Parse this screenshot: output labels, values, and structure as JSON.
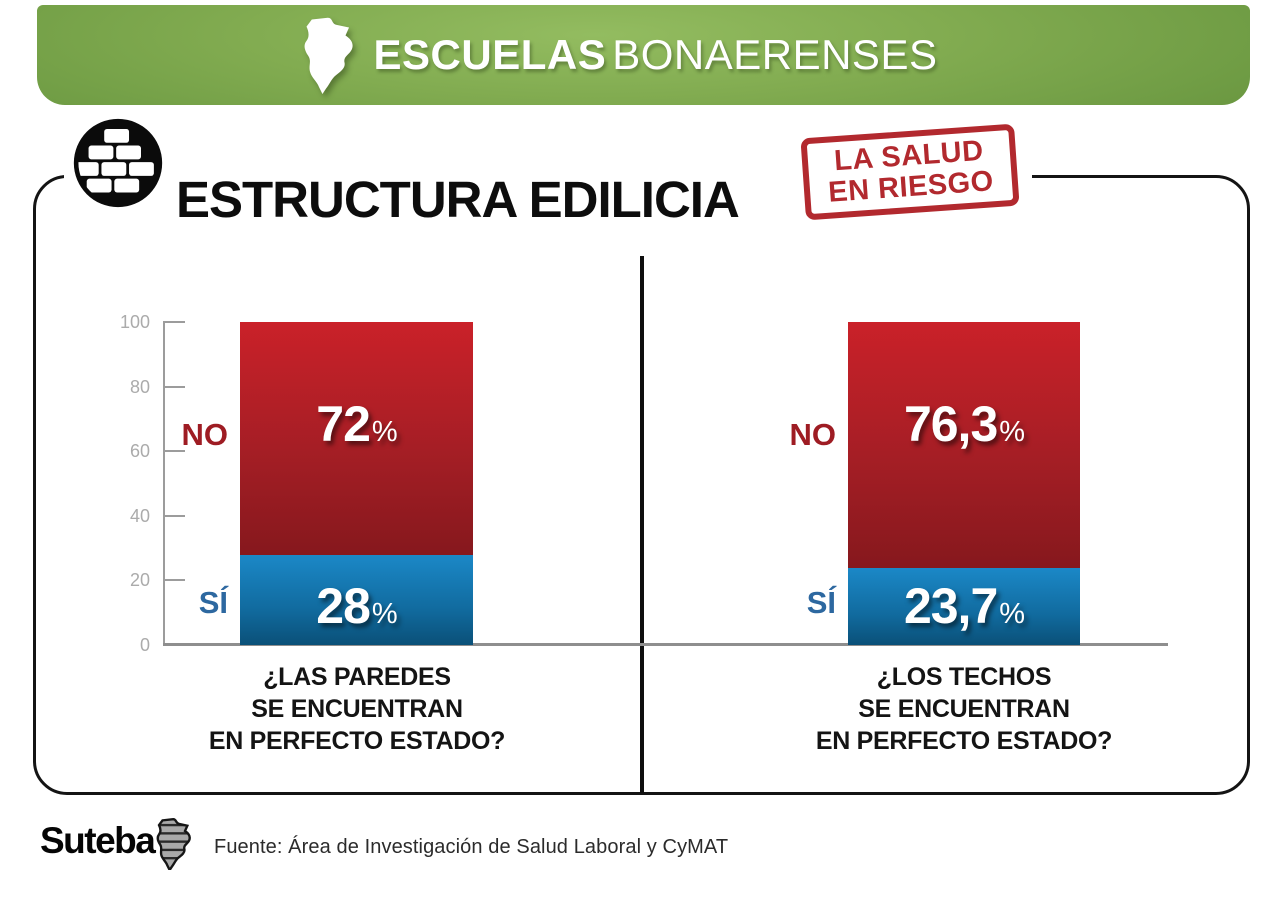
{
  "header": {
    "title_bold": "ESCUELAS",
    "title_regular": "BONAERENSES",
    "banner_color": "#7ea74f"
  },
  "section": {
    "title": "ESTRUCTURA EDILICIA",
    "stamp_line1": "LA SALUD",
    "stamp_line2": "EN RIESGO",
    "stamp_color": "#b2292e"
  },
  "icons": {
    "banner_map": "buenos-aires-province-map",
    "title_badge": "brick-wall-in-circle",
    "footer_map": "buenos-aires-province-map-striped"
  },
  "chart_data": {
    "type": "bar",
    "subtype": "stacked-100-percent",
    "ylim": [
      0,
      100
    ],
    "yticks": [
      0,
      20,
      40,
      60,
      80,
      100
    ],
    "grid": false,
    "legend": "inline-side-labels",
    "colors": {
      "no": "#ca2129",
      "si": "#1b88c7",
      "no_label": "#9e1c23",
      "si_label": "#2d68a0"
    },
    "charts": [
      {
        "question": "¿LAS PAREDES\nSE ENCUENTRAN\nEN PERFECTO ESTADO?",
        "segments": [
          {
            "label": "NO",
            "value": 72,
            "display": "72",
            "unit": "%"
          },
          {
            "label": "SÍ",
            "value": 28,
            "display": "28",
            "unit": "%"
          }
        ]
      },
      {
        "question": "¿LOS TECHOS\nSE ENCUENTRAN\nEN PERFECTO ESTADO?",
        "segments": [
          {
            "label": "NO",
            "value": 76.3,
            "display": "76,3",
            "unit": "%"
          },
          {
            "label": "SÍ",
            "value": 23.7,
            "display": "23,7",
            "unit": "%"
          }
        ]
      }
    ]
  },
  "footer": {
    "logo_text": "Suteba",
    "source": "Fuente: Área de Investigación de Salud Laboral y CyMAT"
  }
}
